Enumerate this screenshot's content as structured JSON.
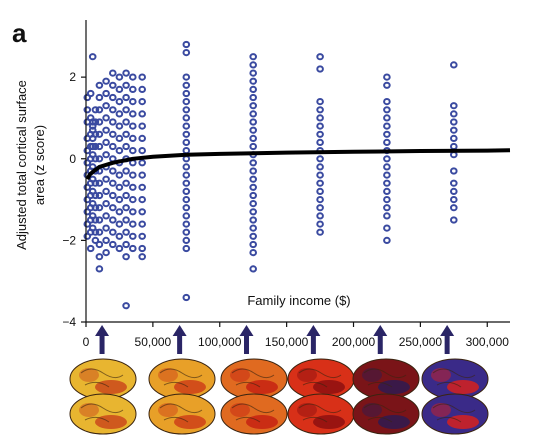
{
  "chart_data": {
    "type": "scatter",
    "panel_label": "a",
    "title": "",
    "xlabel": "Family income ($)",
    "ylabel": "Adjusted total cortical surface area (z score)",
    "xlim": [
      0,
      317000
    ],
    "ylim": [
      -4,
      3.4
    ],
    "x_ticks": [
      0,
      50000,
      100000,
      150000,
      200000,
      250000,
      300000
    ],
    "x_tick_labels": [
      "0",
      "50,000",
      "100,000",
      "150,000",
      "200,000",
      "250,000",
      "300,000"
    ],
    "y_ticks": [
      -4,
      -2,
      0,
      2
    ],
    "y_tick_labels": [
      "−4",
      "−2",
      "0",
      "2"
    ],
    "grid": false,
    "columns": [
      {
        "x": 1000,
        "y": [
          1.5,
          1.2,
          0.9,
          0.5,
          0.2,
          -0.1,
          -0.4,
          -0.7,
          -1.0,
          -1.3,
          -1.6,
          -1.9
        ]
      },
      {
        "x": 3500,
        "y": [
          1.6,
          1.0,
          0.6,
          0.3,
          0.0,
          -0.3,
          -0.6,
          -0.9,
          -1.2,
          -1.5,
          -1.8,
          -2.2
        ]
      },
      {
        "x": 5000,
        "y": [
          2.5,
          0.9,
          0.8,
          0.7,
          0.5,
          0.3,
          0.1,
          -0.2,
          -0.5,
          -0.8,
          -1.1,
          -1.4,
          -1.7
        ]
      },
      {
        "x": 7000,
        "y": [
          1.2,
          0.9,
          0.6,
          0.3,
          0.0,
          -0.3,
          -0.6,
          -0.9,
          -1.2,
          -1.5,
          -1.8,
          -2.0
        ]
      },
      {
        "x": 10000,
        "y": [
          1.8,
          1.5,
          1.2,
          0.9,
          0.6,
          0.3,
          0.0,
          -0.3,
          -0.6,
          -0.9,
          -1.2,
          -1.5,
          -1.8,
          -2.1,
          -2.4,
          -2.7
        ]
      },
      {
        "x": 15000,
        "y": [
          1.9,
          1.6,
          1.3,
          1.0,
          0.7,
          0.4,
          0.1,
          -0.2,
          -0.5,
          -0.8,
          -1.1,
          -1.4,
          -1.7,
          -2.0,
          -2.3
        ]
      },
      {
        "x": 20000,
        "y": [
          2.1,
          1.8,
          1.5,
          1.2,
          0.9,
          0.6,
          0.3,
          0.0,
          -0.3,
          -0.6,
          -0.9,
          -1.2,
          -1.5,
          -1.8,
          -2.1
        ]
      },
      {
        "x": 25000,
        "y": [
          2.0,
          1.7,
          1.4,
          1.1,
          0.8,
          0.5,
          0.2,
          -0.1,
          -0.4,
          -0.7,
          -1.0,
          -1.3,
          -1.6,
          -1.9,
          -2.2
        ]
      },
      {
        "x": 30000,
        "y": [
          2.1,
          1.8,
          1.5,
          1.2,
          0.9,
          0.6,
          0.3,
          0.0,
          -0.3,
          -0.6,
          -0.9,
          -1.2,
          -1.5,
          -1.8,
          -2.1,
          -2.4,
          -3.6
        ]
      },
      {
        "x": 35000,
        "y": [
          2.0,
          1.7,
          1.4,
          1.1,
          0.8,
          0.5,
          0.2,
          -0.1,
          -0.4,
          -0.7,
          -1.0,
          -1.3,
          -1.6,
          -1.9,
          -2.2
        ]
      },
      {
        "x": 42000,
        "y": [
          2.0,
          1.7,
          1.4,
          1.1,
          0.8,
          0.5,
          0.2,
          -0.1,
          -0.4,
          -0.7,
          -1.0,
          -1.3,
          -1.6,
          -1.9,
          -2.2,
          -2.4
        ]
      },
      {
        "x": 75000,
        "y": [
          2.8,
          2.6,
          2.0,
          1.8,
          1.6,
          1.4,
          1.2,
          1.0,
          0.8,
          0.6,
          0.4,
          0.2,
          0.0,
          -0.2,
          -0.4,
          -0.6,
          -0.8,
          -1.0,
          -1.2,
          -1.4,
          -1.6,
          -1.8,
          -2.0,
          -2.2,
          -3.4
        ]
      },
      {
        "x": 125000,
        "y": [
          2.5,
          2.3,
          2.1,
          1.9,
          1.7,
          1.5,
          1.3,
          1.1,
          0.9,
          0.7,
          0.5,
          0.3,
          0.1,
          -0.1,
          -0.3,
          -0.5,
          -0.7,
          -0.9,
          -1.1,
          -1.3,
          -1.5,
          -1.7,
          -1.9,
          -2.1,
          -2.3,
          -2.7
        ]
      },
      {
        "x": 175000,
        "y": [
          2.5,
          2.2,
          1.4,
          1.2,
          1.0,
          0.8,
          0.6,
          0.4,
          0.2,
          0.0,
          -0.2,
          -0.4,
          -0.6,
          -0.8,
          -1.0,
          -1.2,
          -1.4,
          -1.6,
          -1.8
        ]
      },
      {
        "x": 225000,
        "y": [
          2.0,
          1.8,
          1.4,
          1.2,
          1.0,
          0.8,
          0.6,
          0.4,
          0.2,
          0.0,
          -0.2,
          -0.4,
          -0.6,
          -0.8,
          -1.0,
          -1.2,
          -1.4,
          -1.7,
          -2.0
        ]
      },
      {
        "x": 275000,
        "y": [
          2.3,
          1.3,
          1.1,
          0.9,
          0.7,
          0.5,
          0.3,
          0.1,
          -0.3,
          -0.6,
          -0.8,
          -1.0,
          -1.2,
          -1.5
        ]
      }
    ],
    "fit_line": {
      "x": [
        1000,
        3000,
        6000,
        10000,
        20000,
        35000,
        50000,
        75000,
        100000,
        150000,
        200000,
        250000,
        300000,
        317000
      ],
      "y": [
        -0.5,
        -0.38,
        -0.3,
        -0.2,
        -0.1,
        0.0,
        0.05,
        0.1,
        0.12,
        0.15,
        0.17,
        0.19,
        0.2,
        0.21
      ]
    },
    "arrow_incomes": [
      12000,
      70000,
      120000,
      170000,
      220000,
      270000
    ],
    "brain_colors": [
      {
        "top": "#e8b530",
        "accent": "#c8421a"
      },
      {
        "top": "#e8a028",
        "accent": "#cc3a16"
      },
      {
        "top": "#e06a20",
        "accent": "#c41e12"
      },
      {
        "top": "#d83018",
        "accent": "#8a0e10"
      },
      {
        "top": "#7a1418",
        "accent": "#2a1a55"
      },
      {
        "top": "#3a2a88",
        "accent": "#e02018"
      }
    ]
  }
}
